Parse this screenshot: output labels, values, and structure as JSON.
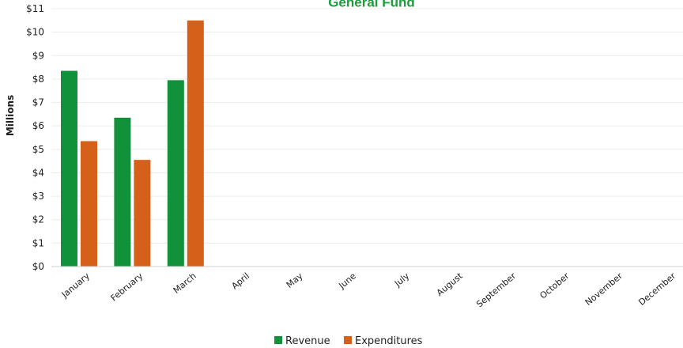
{
  "chart_data": {
    "type": "bar",
    "title": "General Fund",
    "title_color": "#1a9e3a",
    "xlabel": "",
    "ylabel": "Millions",
    "ylim": [
      0,
      11
    ],
    "ytick_labels": [
      "$0",
      "$1",
      "$2",
      "$3",
      "$4",
      "$5",
      "$6",
      "$7",
      "$8",
      "$9",
      "$10",
      "$11"
    ],
    "categories": [
      "January",
      "February",
      "March",
      "April",
      "May",
      "June",
      "July",
      "August",
      "September",
      "October",
      "November",
      "December"
    ],
    "series": [
      {
        "name": "Revenue",
        "color": "#10913a",
        "values": [
          8.35,
          6.35,
          7.95,
          null,
          null,
          null,
          null,
          null,
          null,
          null,
          null,
          null
        ]
      },
      {
        "name": "Expenditures",
        "color": "#d5601a",
        "values": [
          5.35,
          4.55,
          10.5,
          null,
          null,
          null,
          null,
          null,
          null,
          null,
          null,
          null
        ]
      }
    ],
    "grid": true,
    "legend_position": "bottom-center"
  }
}
